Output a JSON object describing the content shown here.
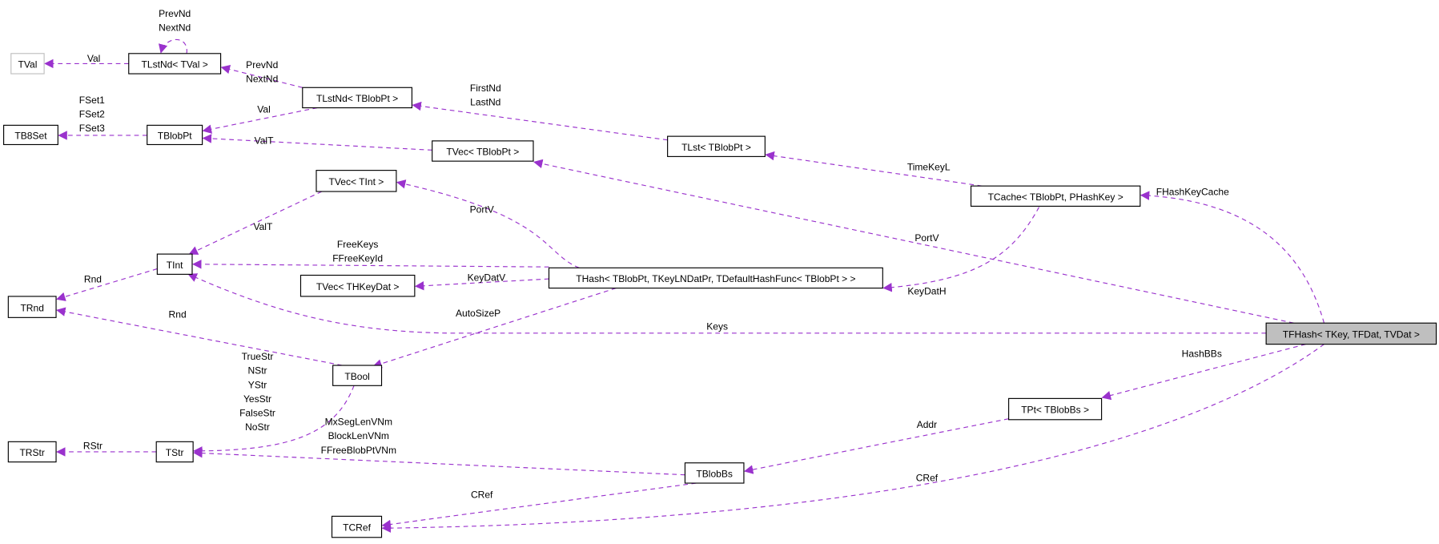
{
  "diagram": {
    "edge_color": "#9a32cd",
    "focus_fill": "#bfbfbf",
    "nodes": [
      {
        "id": "TVal",
        "label": "TVal",
        "style": "muted"
      },
      {
        "id": "TLstNdTVal",
        "label": "TLstNd< TVal >"
      },
      {
        "id": "TLstNdTBlobPt",
        "label": "TLstNd< TBlobPt >"
      },
      {
        "id": "TB8Set",
        "label": "TB8Set"
      },
      {
        "id": "TBlobPt",
        "label": "TBlobPt"
      },
      {
        "id": "TVecTBlobPt",
        "label": "TVec< TBlobPt >"
      },
      {
        "id": "TLst",
        "label": "TLst< TBlobPt >"
      },
      {
        "id": "TVecTInt",
        "label": "TVec< TInt >"
      },
      {
        "id": "TCache",
        "label": "TCache< TBlobPt, PHashKey >"
      },
      {
        "id": "TInt",
        "label": "TInt"
      },
      {
        "id": "TRnd",
        "label": "TRnd"
      },
      {
        "id": "TVecTHKeyDat",
        "label": "TVec< THKeyDat >"
      },
      {
        "id": "THash",
        "label": "THash< TBlobPt, TKeyLNDatPr, TDefaultHashFunc< TBlobPt > >"
      },
      {
        "id": "TFHash",
        "label": "TFHash< TKey, TFDat, TVDat >",
        "style": "focus"
      },
      {
        "id": "TBool",
        "label": "TBool"
      },
      {
        "id": "TPt",
        "label": "TPt< TBlobBs >"
      },
      {
        "id": "TRStr",
        "label": "TRStr"
      },
      {
        "id": "TStr",
        "label": "TStr"
      },
      {
        "id": "TBlobBs",
        "label": "TBlobBs"
      },
      {
        "id": "TCRef",
        "label": "TCRef"
      }
    ],
    "edges": [
      {
        "from": "TLstNdTVal",
        "to": "TLstNdTVal",
        "labels": [
          "PrevNd",
          "NextNd"
        ]
      },
      {
        "from": "TLstNdTVal",
        "to": "TVal",
        "labels": [
          "Val"
        ]
      },
      {
        "from": "TLstNdTBlobPt",
        "to": "TLstNdTVal",
        "labels": [
          "PrevNd",
          "NextNd"
        ]
      },
      {
        "from": "TLstNdTBlobPt",
        "to": "TBlobPt",
        "labels": [
          "Val"
        ]
      },
      {
        "from": "TBlobPt",
        "to": "TB8Set",
        "labels": [
          "FSet1",
          "FSet2",
          "FSet3"
        ]
      },
      {
        "from": "TVecTBlobPt",
        "to": "TBlobPt",
        "labels": [
          "ValT"
        ]
      },
      {
        "from": "TLst",
        "to": "TLstNdTBlobPt",
        "labels": [
          "FirstNd",
          "LastNd"
        ]
      },
      {
        "from": "TCache",
        "to": "TLst",
        "labels": [
          "TimeKeyL"
        ]
      },
      {
        "from": "TFHash",
        "to": "TVecTBlobPt",
        "labels": [
          "PortV"
        ]
      },
      {
        "from": "THash",
        "to": "TVecTInt",
        "labels": [
          "PortV"
        ]
      },
      {
        "from": "TVecTInt",
        "to": "TInt",
        "labels": [
          "ValT"
        ]
      },
      {
        "from": "THash",
        "to": "TInt",
        "labels": [
          "FreeKeys",
          "FFreeKeyId"
        ]
      },
      {
        "from": "THash",
        "to": "TVecTHKeyDat",
        "labels": [
          "KeyDatV"
        ]
      },
      {
        "from": "TCache",
        "to": "THash",
        "labels": [
          "KeyDatH"
        ]
      },
      {
        "from": "TFHash",
        "to": "TCache",
        "labels": [
          "FHashKeyCache"
        ]
      },
      {
        "from": "THash",
        "to": "TBool",
        "labels": [
          "AutoSizeP"
        ]
      },
      {
        "from": "TInt",
        "to": "TRnd",
        "labels": [
          "Rnd"
        ]
      },
      {
        "from": "TFHash",
        "to": "TInt",
        "labels": [
          "Keys"
        ]
      },
      {
        "from": "TBool",
        "to": "TRnd",
        "labels": [
          "Rnd"
        ]
      },
      {
        "from": "TBool",
        "to": "TStr",
        "labels": [
          "TrueStr",
          "NStr",
          "YStr",
          "YesStr",
          "FalseStr",
          "NoStr"
        ]
      },
      {
        "from": "TFHash",
        "to": "TPt",
        "labels": [
          "HashBBs"
        ]
      },
      {
        "from": "TPt",
        "to": "TBlobBs",
        "labels": [
          "Addr"
        ]
      },
      {
        "from": "TBlobBs",
        "to": "TStr",
        "labels": [
          "MxSegLenVNm",
          "BlockLenVNm",
          "FFreeBlobPtVNm"
        ]
      },
      {
        "from": "TStr",
        "to": "TRStr",
        "labels": [
          "RStr"
        ]
      },
      {
        "from": "TBlobBs",
        "to": "TCRef",
        "labels": [
          "CRef"
        ]
      },
      {
        "from": "TFHash",
        "to": "TCRef",
        "labels": [
          "CRef"
        ]
      }
    ]
  }
}
